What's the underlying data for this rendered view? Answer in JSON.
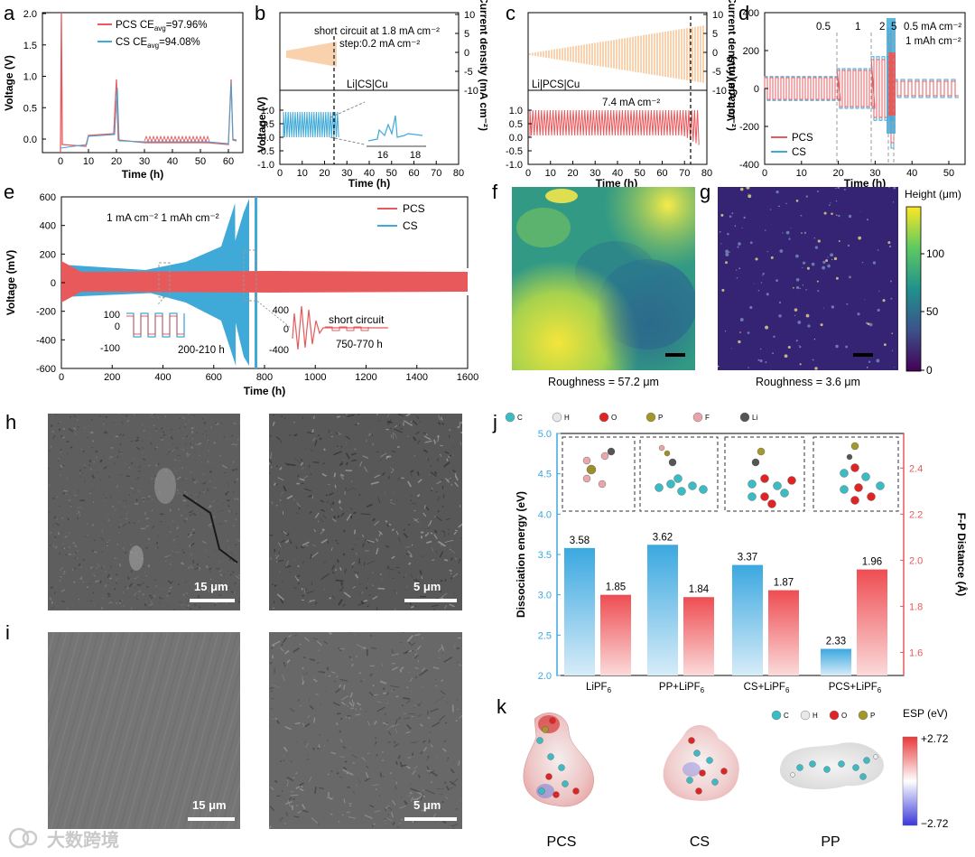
{
  "panels": {
    "a": "a",
    "b": "b",
    "c": "c",
    "d": "d",
    "e": "e",
    "f": "f",
    "g": "g",
    "h": "h",
    "i": "i",
    "j": "j",
    "k": "k"
  },
  "colors": {
    "pcs": "#e8595c",
    "cs": "#3fa9d8",
    "current": "#f5a35b"
  },
  "panel_a": {
    "ylabel": "Voltage (V)",
    "xlabel": "Time (h)",
    "yticks": [
      "0.0",
      "0.5",
      "1.0",
      "1.5",
      "2.0"
    ],
    "xticks": [
      "0",
      "10",
      "20",
      "30",
      "40",
      "50",
      "60"
    ],
    "legend": [
      {
        "name": "PCS",
        "text": "PCS CE",
        "sub": "avg",
        "value": "=97.96%"
      },
      {
        "name": "CS",
        "text": "CS   CE",
        "sub": "avg",
        "value": "=94.08%"
      }
    ]
  },
  "panel_b": {
    "ylabel": "Voltage (V)",
    "xlabel": "Time (h)",
    "ylabel_right": "Current density (mA cm⁻²)",
    "yticks": [
      "-1.0",
      "-0.5",
      "0.0",
      "0.5",
      "1.0"
    ],
    "xticks": [
      "0",
      "10",
      "20",
      "30",
      "40",
      "50",
      "60",
      "70",
      "80"
    ],
    "rticks": [
      "-10",
      "-5",
      "0",
      "5",
      "10"
    ],
    "ann1": "short circuit at 1.8 mA cm⁻²",
    "ann2": "step:0.2 mA cm⁻²",
    "cell": "Li|CS|Cu",
    "inset_ticks": [
      "16",
      "18"
    ]
  },
  "panel_c": {
    "ylabel_right": "Current density (mA cm⁻²)",
    "xlabel": "Time (h)",
    "yticks": [
      "-1.0",
      "-0.5",
      "0.0",
      "0.5",
      "1.0"
    ],
    "xticks": [
      "0",
      "10",
      "20",
      "30",
      "40",
      "50",
      "60",
      "70",
      "80"
    ],
    "rticks": [
      "-10",
      "-5",
      "0",
      "5",
      "10"
    ],
    "cell": "Li|PCS|Cu",
    "ann": "7.4 mA cm⁻²"
  },
  "panel_d": {
    "ylabel": "Voltage (mV)",
    "xlabel": "Time (h)",
    "yticks": [
      "-400",
      "-200",
      "0",
      "200",
      "400"
    ],
    "xticks": [
      "0",
      "10",
      "20",
      "30",
      "40",
      "50"
    ],
    "rates": [
      "0.5",
      "1",
      "2",
      "5",
      "0.5 mA cm⁻²"
    ],
    "ann": "1 mAh cm⁻²",
    "legend": [
      "PCS",
      "CS"
    ]
  },
  "panel_e": {
    "ylabel": "Voltage (mV)",
    "xlabel": "Time (h)",
    "yticks": [
      "-600",
      "-400",
      "-200",
      "0",
      "200",
      "400",
      "600"
    ],
    "xticks": [
      "0",
      "200",
      "400",
      "600",
      "800",
      "1000",
      "1200",
      "1400",
      "1600"
    ],
    "ann": "1 mA cm⁻² 1 mAh cm⁻²",
    "legend": [
      "PCS",
      "CS"
    ],
    "inset1_ticks": [
      "100",
      "0",
      "-100"
    ],
    "inset1_label": "200-210 h",
    "inset2_ticks": [
      "400",
      "0",
      "-400"
    ],
    "inset2_label": "750-770 h",
    "inset2_ann": "short circuit"
  },
  "panel_f": {
    "caption": "Roughness = 57.2 μm"
  },
  "panel_g": {
    "caption": "Roughness = 3.6 μm"
  },
  "colorbar": {
    "title": "Height (μm)",
    "ticks": [
      "100",
      "50",
      "0"
    ]
  },
  "panel_h": {
    "scale1": "15 μm",
    "scale2": "5 μm"
  },
  "panel_i": {
    "scale1": "15 μm",
    "scale2": "5 μm"
  },
  "panel_j": {
    "atoms": [
      "C",
      "H",
      "O",
      "P",
      "F",
      "Li"
    ],
    "ylabel": "Dissociation energy (eV)",
    "ylabel_right": "F-P Distance (Å)",
    "yticks": [
      "2.0",
      "2.5",
      "3.0",
      "3.5",
      "4.0",
      "4.5",
      "5.0"
    ],
    "rticks": [
      "1.6",
      "1.8",
      "2.0",
      "2.2",
      "2.4"
    ]
  },
  "chart_data": [
    {
      "type": "bar",
      "categories": [
        "LiPF6",
        "PP+LiPF6",
        "CS+LiPF6",
        "PCS+LiPF6"
      ],
      "category_labels": [
        {
          "main": "LiPF",
          "sub": "6"
        },
        {
          "main": "PP+LiPF",
          "sub": "6"
        },
        {
          "main": "CS+LiPF",
          "sub": "6"
        },
        {
          "main": "PCS+LiPF",
          "sub": "6"
        }
      ],
      "series": [
        {
          "axis": "left",
          "values": [
            3.58,
            3.62,
            3.37,
            2.33
          ],
          "labels": [
            "3.58",
            "3.62",
            "3.37",
            "2.33"
          ]
        },
        {
          "axis": "right",
          "values": [
            1.85,
            1.84,
            1.87,
            1.96
          ],
          "labels": [
            "1.85",
            "1.84",
            "1.87",
            "1.96"
          ]
        }
      ],
      "ylim": [
        2.0,
        5.0
      ],
      "ylim_right": [
        1.5,
        2.55
      ]
    }
  ],
  "panel_k": {
    "atoms": [
      "C",
      "H",
      "O",
      "P"
    ],
    "labels": [
      "PCS",
      "CS",
      "PP"
    ],
    "esp_title": "ESP (eV)",
    "esp_max": "+2.72",
    "esp_min": "−2.72"
  },
  "watermark": "大数跨境"
}
